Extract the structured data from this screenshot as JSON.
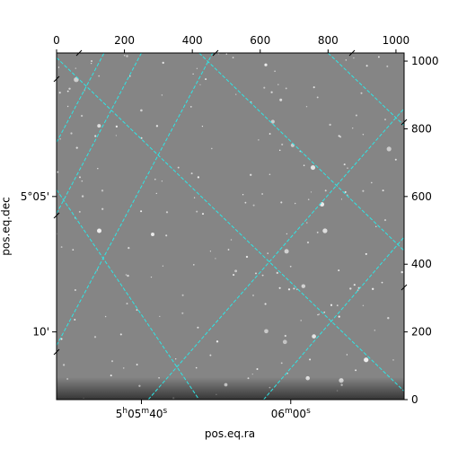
{
  "chart_data": {
    "type": "image",
    "xlabel": "pos.eq.ra",
    "ylabel": "pos.eq.dec",
    "pixel_axes": {
      "x_range": [
        0,
        1024
      ],
      "y_range": [
        0,
        1024
      ],
      "top_ticks": [
        0,
        200,
        400,
        600,
        800,
        1000
      ],
      "right_ticks": [
        0,
        200,
        400,
        600,
        800,
        1000
      ]
    },
    "world_ticks": {
      "ra": [
        {
          "label_parts": [
            "5",
            "h",
            "05",
            "m",
            "40",
            "s"
          ],
          "x": 250
        },
        {
          "label_parts": [
            "06",
            "m",
            "00",
            "s"
          ],
          "x": 690
        }
      ],
      "dec": [
        {
          "label": "5°05'",
          "y": 600
        },
        {
          "label": "10'",
          "y": 200
        }
      ]
    },
    "grid": {
      "color": "#2ee6e6",
      "style": "dashed",
      "lines_descending": [
        [
          [
            0,
            1024
          ],
          [
            1024,
            810
          ]
        ],
        [
          [
            0,
            1024
          ],
          [
            160,
            1024
          ]
        ],
        [
          [
            0,
            1024
          ],
          [
            420,
            1024
          ]
        ],
        [
          [
            0,
            1024
          ],
          [
            790,
            1024
          ]
        ]
      ]
    },
    "colormap": "gray",
    "grid_on": true
  }
}
